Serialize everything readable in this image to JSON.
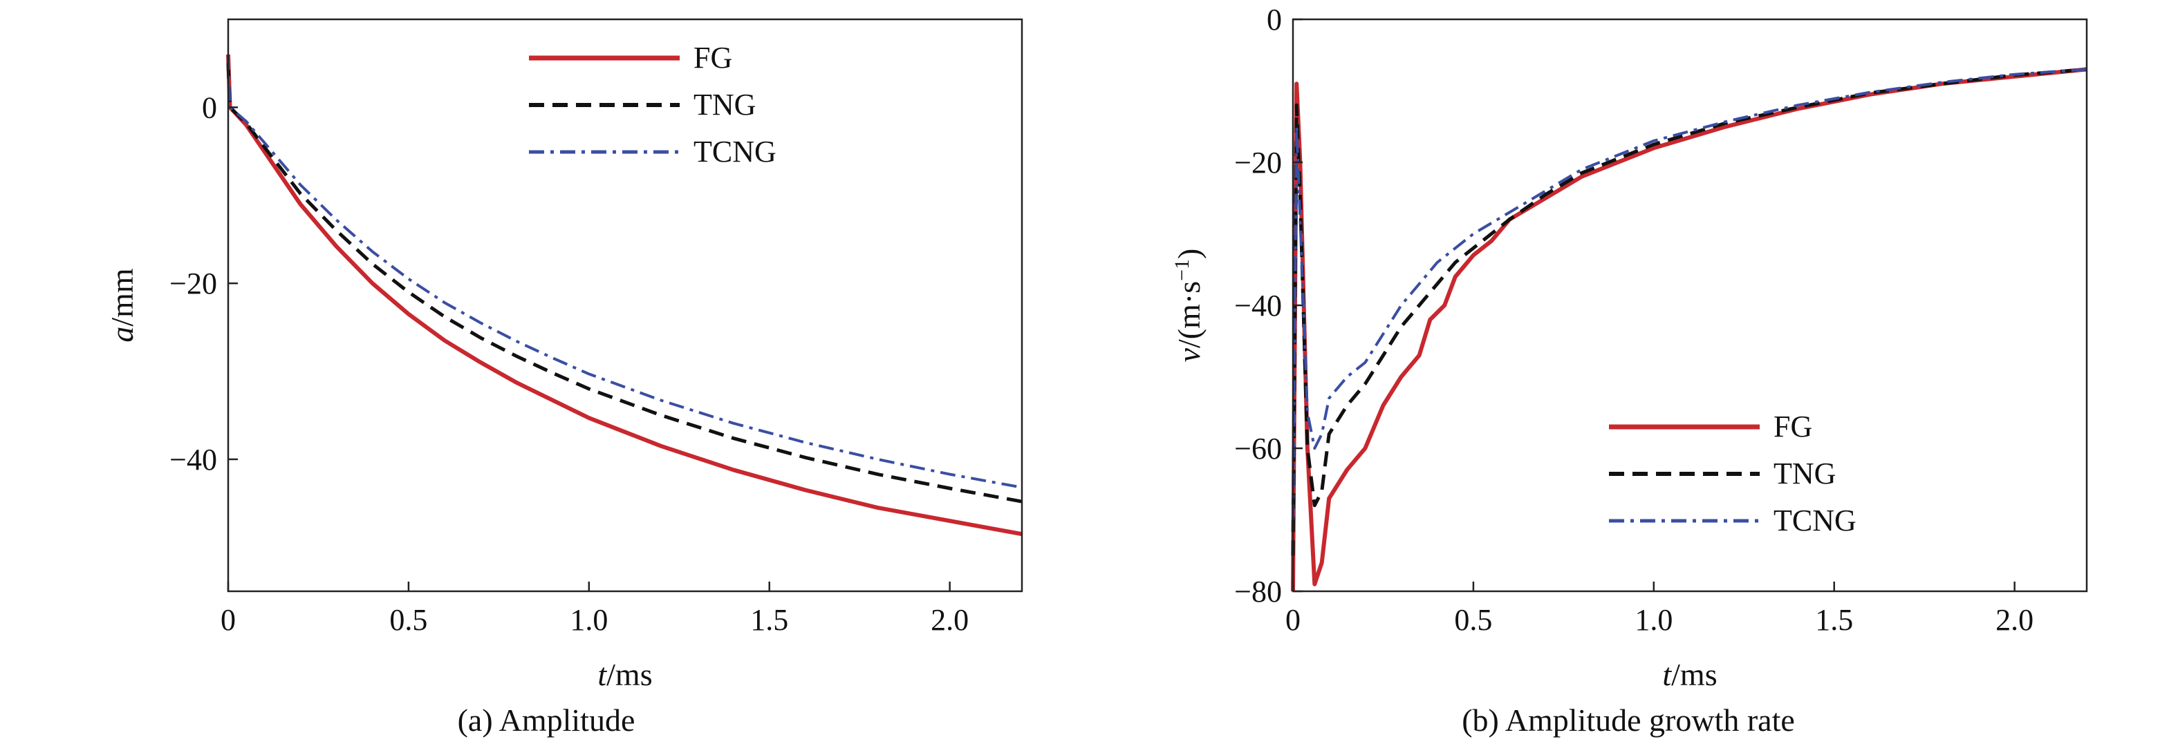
{
  "chart_data": [
    {
      "type": "line",
      "caption": "(a) Amplitude",
      "xlabel_var": "t",
      "xlabel_unit": "/ms",
      "ylabel_var": "a",
      "ylabel_unit": "/mm",
      "xlim": [
        0,
        2.2
      ],
      "ylim": [
        -55,
        10
      ],
      "xticks": [
        0,
        0.5,
        1.0,
        1.5,
        2.0
      ],
      "xtick_labels": [
        "0",
        "0.5",
        "1.0",
        "1.5",
        "2.0"
      ],
      "yticks": [
        0,
        -20,
        -40
      ],
      "ytick_labels": [
        "0",
        "−20",
        "−40"
      ],
      "legend_position": "top-right",
      "grid": false,
      "series": [
        {
          "name": "FG",
          "style": "solid",
          "color": "#c8282e",
          "points": [
            [
              0,
              6
            ],
            [
              0.005,
              0
            ],
            [
              0.05,
              -2.0
            ],
            [
              0.1,
              -5.0
            ],
            [
              0.2,
              -11.0
            ],
            [
              0.3,
              -15.8
            ],
            [
              0.4,
              -20.0
            ],
            [
              0.5,
              -23.5
            ],
            [
              0.6,
              -26.5
            ],
            [
              0.7,
              -29.0
            ],
            [
              0.8,
              -31.3
            ],
            [
              0.9,
              -33.3
            ],
            [
              1.0,
              -35.3
            ],
            [
              1.2,
              -38.5
            ],
            [
              1.4,
              -41.2
            ],
            [
              1.6,
              -43.5
            ],
            [
              1.8,
              -45.5
            ],
            [
              2.0,
              -47.0
            ],
            [
              2.2,
              -48.5
            ]
          ]
        },
        {
          "name": "TNG",
          "style": "dashed",
          "color": "#111111",
          "points": [
            [
              0,
              5
            ],
            [
              0.005,
              0
            ],
            [
              0.05,
              -1.8
            ],
            [
              0.1,
              -4.5
            ],
            [
              0.2,
              -9.8
            ],
            [
              0.3,
              -14.0
            ],
            [
              0.4,
              -17.8
            ],
            [
              0.5,
              -21.0
            ],
            [
              0.6,
              -23.8
            ],
            [
              0.7,
              -26.2
            ],
            [
              0.8,
              -28.3
            ],
            [
              0.9,
              -30.2
            ],
            [
              1.0,
              -32.0
            ],
            [
              1.2,
              -35.0
            ],
            [
              1.4,
              -37.6
            ],
            [
              1.6,
              -39.8
            ],
            [
              1.8,
              -41.7
            ],
            [
              2.0,
              -43.3
            ],
            [
              2.2,
              -44.8
            ]
          ]
        },
        {
          "name": "TCNG",
          "style": "dashdot",
          "color": "#3a4ea2",
          "points": [
            [
              0,
              6
            ],
            [
              0.005,
              0
            ],
            [
              0.05,
              -1.6
            ],
            [
              0.1,
              -4.0
            ],
            [
              0.2,
              -8.8
            ],
            [
              0.3,
              -12.8
            ],
            [
              0.4,
              -16.4
            ],
            [
              0.5,
              -19.5
            ],
            [
              0.6,
              -22.2
            ],
            [
              0.7,
              -24.5
            ],
            [
              0.8,
              -26.6
            ],
            [
              0.9,
              -28.5
            ],
            [
              1.0,
              -30.3
            ],
            [
              1.2,
              -33.3
            ],
            [
              1.4,
              -35.9
            ],
            [
              1.6,
              -38.1
            ],
            [
              1.8,
              -40.0
            ],
            [
              2.0,
              -41.7
            ],
            [
              2.2,
              -43.2
            ]
          ]
        }
      ]
    },
    {
      "type": "line",
      "caption": "(b) Amplitude growth rate",
      "xlabel_var": "t",
      "xlabel_unit": "/ms",
      "ylabel_var": "v",
      "ylabel_unit": "/(m·s",
      "ylabel_sup": "−1",
      "ylabel_close": ")",
      "xlim": [
        0,
        2.2
      ],
      "ylim": [
        -80,
        0
      ],
      "xticks": [
        0,
        0.5,
        1.0,
        1.5,
        2.0
      ],
      "xtick_labels": [
        "0",
        "0.5",
        "1.0",
        "1.5",
        "2.0"
      ],
      "yticks": [
        0,
        -20,
        -40,
        -60,
        -80
      ],
      "ytick_labels": [
        "0",
        "−20",
        "−40",
        "−60",
        "−80"
      ],
      "legend_position": "bottom-right",
      "grid": false,
      "series": [
        {
          "name": "FG",
          "style": "solid",
          "color": "#c8282e",
          "points": [
            [
              0,
              -80
            ],
            [
              0.01,
              -9
            ],
            [
              0.02,
              -20
            ],
            [
              0.04,
              -60
            ],
            [
              0.06,
              -79
            ],
            [
              0.08,
              -76
            ],
            [
              0.1,
              -67
            ],
            [
              0.15,
              -63
            ],
            [
              0.2,
              -60
            ],
            [
              0.25,
              -54
            ],
            [
              0.3,
              -50
            ],
            [
              0.35,
              -47
            ],
            [
              0.38,
              -42
            ],
            [
              0.42,
              -40
            ],
            [
              0.45,
              -36
            ],
            [
              0.5,
              -33
            ],
            [
              0.55,
              -31
            ],
            [
              0.6,
              -28
            ],
            [
              0.7,
              -25
            ],
            [
              0.8,
              -22
            ],
            [
              1.0,
              -18
            ],
            [
              1.2,
              -15
            ],
            [
              1.4,
              -12.5
            ],
            [
              1.6,
              -10.5
            ],
            [
              1.8,
              -9
            ],
            [
              2.0,
              -8
            ],
            [
              2.2,
              -7
            ]
          ]
        },
        {
          "name": "TNG",
          "style": "dashed",
          "color": "#111111",
          "points": [
            [
              0,
              -75
            ],
            [
              0.01,
              -12
            ],
            [
              0.02,
              -25
            ],
            [
              0.04,
              -60
            ],
            [
              0.06,
              -68
            ],
            [
              0.08,
              -66
            ],
            [
              0.1,
              -58
            ],
            [
              0.15,
              -54
            ],
            [
              0.2,
              -51
            ],
            [
              0.25,
              -47
            ],
            [
              0.3,
              -43
            ],
            [
              0.35,
              -40
            ],
            [
              0.4,
              -37
            ],
            [
              0.45,
              -34
            ],
            [
              0.5,
              -32
            ],
            [
              0.6,
              -28
            ],
            [
              0.7,
              -24.5
            ],
            [
              0.8,
              -21.5
            ],
            [
              1.0,
              -17.5
            ],
            [
              1.2,
              -14.5
            ],
            [
              1.4,
              -12.3
            ],
            [
              1.6,
              -10.3
            ],
            [
              1.8,
              -9
            ],
            [
              2.0,
              -7.8
            ],
            [
              2.2,
              -7
            ]
          ]
        },
        {
          "name": "TCNG",
          "style": "dashdot",
          "color": "#3a4ea2",
          "points": [
            [
              0,
              -70
            ],
            [
              0.01,
              -15
            ],
            [
              0.02,
              -28
            ],
            [
              0.04,
              -55
            ],
            [
              0.06,
              -60
            ],
            [
              0.08,
              -58
            ],
            [
              0.1,
              -53
            ],
            [
              0.15,
              -50
            ],
            [
              0.2,
              -48
            ],
            [
              0.25,
              -44
            ],
            [
              0.3,
              -40
            ],
            [
              0.35,
              -37
            ],
            [
              0.4,
              -34
            ],
            [
              0.45,
              -32
            ],
            [
              0.5,
              -30
            ],
            [
              0.6,
              -27
            ],
            [
              0.7,
              -24
            ],
            [
              0.8,
              -21
            ],
            [
              1.0,
              -17
            ],
            [
              1.2,
              -14.3
            ],
            [
              1.4,
              -12
            ],
            [
              1.6,
              -10.2
            ],
            [
              1.8,
              -8.8
            ],
            [
              2.0,
              -7.7
            ],
            [
              2.2,
              -7
            ]
          ]
        }
      ]
    }
  ]
}
